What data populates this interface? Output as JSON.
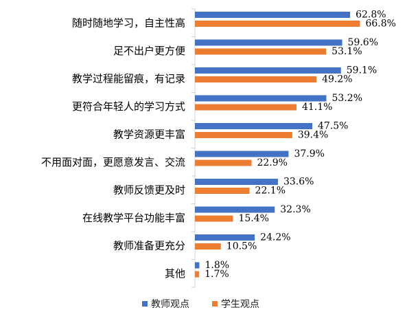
{
  "chart_data": {
    "type": "bar",
    "orientation": "horizontal",
    "categories": [
      "随时随地学习，自主性高",
      "足不出户更方便",
      "教学过程能留痕，有记录",
      "更符合年轻人的学习方式",
      "教学资源更丰富",
      "不用面对面，更愿意发言、交流",
      "教师反馈更及时",
      "在线教学平台功能丰富",
      "教师准备更充分",
      "其他"
    ],
    "series": [
      {
        "name": "教师观点",
        "color": "#4472C4",
        "values": [
          62.8,
          59.6,
          59.1,
          53.2,
          47.5,
          37.9,
          33.6,
          32.3,
          24.2,
          1.8
        ],
        "labels": [
          "62.8%",
          "59.6%",
          "59.1%",
          "53.2%",
          "47.5%",
          "37.9%",
          "33.6%",
          "32.3%",
          "24.2%",
          "1.8%"
        ]
      },
      {
        "name": "学生观点",
        "color": "#ED7D31",
        "values": [
          66.8,
          53.1,
          49.2,
          41.1,
          39.4,
          22.9,
          22.1,
          15.4,
          10.5,
          1.7
        ],
        "labels": [
          "66.8%",
          "53.1%",
          "49.2%",
          "41.1%",
          "39.4%",
          "22.9%",
          "22.1%",
          "15.4%",
          "10.5%",
          "1.7%"
        ]
      }
    ],
    "title": "",
    "xlabel": "",
    "ylabel": "",
    "xlim": [
      0,
      70
    ],
    "grid": false,
    "legend_position": "bottom"
  }
}
